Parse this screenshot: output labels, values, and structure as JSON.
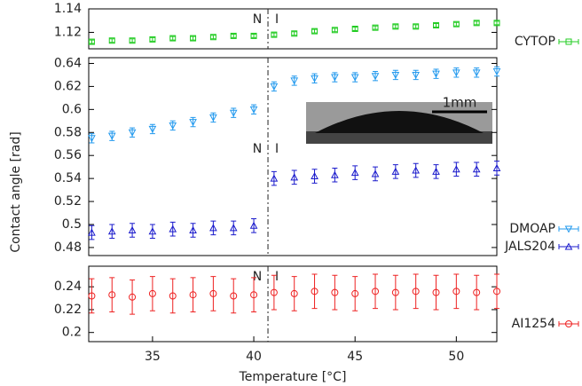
{
  "chart_data": [
    {
      "type": "errorbar",
      "xlim": [
        31.85,
        52
      ],
      "ylim": [
        1.106,
        1.14
      ],
      "yticks": [
        1.12,
        1.14
      ],
      "vline": 40.7,
      "annotations": [
        "N",
        "I"
      ],
      "x": [
        32,
        33,
        34,
        35,
        36,
        37,
        38,
        39,
        40,
        41,
        42,
        43,
        44,
        45,
        46,
        47,
        48,
        49,
        50,
        51,
        52
      ],
      "series": [
        {
          "name": "CYTOP",
          "color": "#22cc22",
          "marker": "square",
          "error": 0.0015,
          "values": [
            1.112,
            1.113,
            1.113,
            1.114,
            1.115,
            1.115,
            1.116,
            1.117,
            1.117,
            1.118,
            1.119,
            1.121,
            1.122,
            1.123,
            1.124,
            1.125,
            1.125,
            1.126,
            1.127,
            1.128,
            1.128
          ]
        }
      ]
    },
    {
      "type": "errorbar",
      "xlim": [
        31.85,
        52
      ],
      "ylim": [
        0.473,
        0.645
      ],
      "yticks": [
        0.48,
        0.5,
        0.52,
        0.54,
        0.56,
        0.58,
        0.6,
        0.62,
        0.64
      ],
      "vline": 40.7,
      "annotations": [
        "N",
        "I"
      ],
      "inset_label": "1mm",
      "ylabel": "Contact angle [rad]",
      "x": [
        32,
        33,
        34,
        35,
        36,
        37,
        38,
        39,
        40,
        41,
        42,
        43,
        44,
        45,
        46,
        47,
        48,
        49,
        50,
        51,
        52
      ],
      "series": [
        {
          "name": "DMOAP",
          "color": "#2299ee",
          "marker": "down",
          "error": 0.004,
          "values": [
            0.575,
            0.577,
            0.58,
            0.583,
            0.586,
            0.589,
            0.593,
            0.597,
            0.6,
            0.62,
            0.625,
            0.627,
            0.628,
            0.628,
            0.629,
            0.63,
            0.63,
            0.631,
            0.632,
            0.632,
            0.633
          ]
        },
        {
          "name": "JALS204",
          "color": "#1a1acc",
          "marker": "up",
          "error": 0.006,
          "values": [
            0.493,
            0.494,
            0.495,
            0.494,
            0.496,
            0.495,
            0.497,
            0.497,
            0.499,
            0.54,
            0.541,
            0.542,
            0.543,
            0.545,
            0.544,
            0.546,
            0.547,
            0.546,
            0.548,
            0.548,
            0.549
          ]
        }
      ]
    },
    {
      "type": "errorbar",
      "xlim": [
        31.85,
        52
      ],
      "ylim": [
        0.192,
        0.258
      ],
      "yticks": [
        0.2,
        0.22,
        0.24
      ],
      "vline": 40.7,
      "annotations": [
        "N",
        "I"
      ],
      "xticks": [
        35,
        40,
        45,
        50
      ],
      "xlabel": "Temperature [°C]",
      "x": [
        32,
        33,
        34,
        35,
        36,
        37,
        38,
        39,
        40,
        41,
        42,
        43,
        44,
        45,
        46,
        47,
        48,
        49,
        50,
        51,
        52
      ],
      "series": [
        {
          "name": "AI1254",
          "color": "#ee2222",
          "marker": "circle",
          "error": 0.015,
          "values": [
            0.232,
            0.233,
            0.231,
            0.234,
            0.232,
            0.233,
            0.234,
            0.232,
            0.233,
            0.235,
            0.234,
            0.236,
            0.235,
            0.234,
            0.236,
            0.235,
            0.236,
            0.235,
            0.236,
            0.235,
            0.236
          ]
        }
      ]
    }
  ]
}
